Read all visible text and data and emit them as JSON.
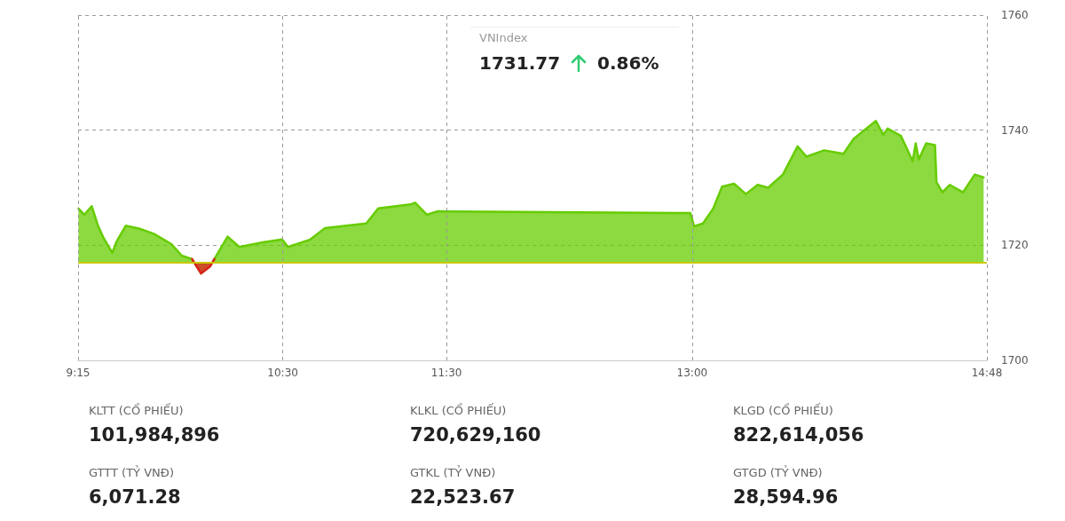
{
  "chart_data": {
    "type": "area",
    "title": "VNIndex",
    "series": [
      {
        "color": "#66cc00",
        "x": [
          9.252,
          9.288,
          9.333,
          9.369,
          9.405,
          9.459,
          9.486,
          9.541,
          9.622,
          9.712,
          9.82,
          9.883,
          9.946,
          10.001,
          10.055,
          10.082,
          10.163,
          10.235,
          10.379,
          10.496,
          10.532,
          10.668,
          10.758,
          11.01,
          11.083,
          11.281,
          11.308,
          11.38,
          11.443,
          12.989,
          13.012,
          13.066,
          13.129,
          13.183,
          13.256,
          13.328,
          13.4,
          13.464,
          13.554,
          13.644,
          13.698,
          13.806,
          13.924,
          13.986,
          14.122,
          14.167,
          14.194,
          14.275,
          14.347,
          14.365,
          14.384,
          14.429,
          14.483,
          14.492,
          14.528,
          14.573,
          14.654,
          14.726,
          14.78
        ],
        "values": [
          1726.4,
          1725.3,
          1726.8,
          1723.6,
          1721.3,
          1718.7,
          1720.7,
          1723.4,
          1722.9,
          1722.0,
          1720.2,
          1718.2,
          1717.6,
          1715.1,
          1716.3,
          1717.6,
          1721.5,
          1719.7,
          1720.5,
          1721.0,
          1719.7,
          1721.0,
          1723.0,
          1723.8,
          1726.4,
          1727.1,
          1727.4,
          1725.3,
          1725.9,
          1725.6,
          1723.3,
          1723.8,
          1726.4,
          1730.2,
          1730.7,
          1728.9,
          1730.5,
          1730.0,
          1732.3,
          1737.2,
          1735.4,
          1736.5,
          1735.9,
          1738.5,
          1741.6,
          1739.2,
          1740.3,
          1739.0,
          1734.6,
          1737.7,
          1734.9,
          1737.7,
          1737.4,
          1731.0,
          1729.2,
          1730.5,
          1729.2,
          1732.3,
          1731.8
        ]
      },
      {
        "color": "#e02020",
        "x": [
          9.946,
          10.001,
          10.055,
          10.082
        ],
        "values": [
          1717.6,
          1715.1,
          1716.3,
          1717.6
        ]
      }
    ],
    "xlim": [
      9.25,
      14.8
    ],
    "xticks": [
      {
        "value": 9.25,
        "label": "9:15"
      },
      {
        "value": 10.5,
        "label": "10:30"
      },
      {
        "value": 11.5,
        "label": "11:30"
      },
      {
        "value": 13,
        "label": "13:00"
      },
      {
        "value": 14.8,
        "label": "14:48"
      }
    ],
    "ylim": [
      1700,
      1760
    ],
    "yticks": [
      1700,
      1720,
      1740,
      1760
    ],
    "grid": true,
    "marker": "none",
    "line_style": "solid",
    "ref_lines": [
      {
        "axis": "y",
        "value": 1717,
        "color": "#c8c800"
      }
    ],
    "annotations": [
      "1731.77",
      "0.86%",
      "KLTT (CỔ PHIẾU)",
      "101,984,896",
      "KLKL (CỔ PHIẾU)",
      "720,629,160",
      "KLGD (CỔ PHIẾU)",
      "822,614,056",
      "GTTT (TỶ VNĐ)",
      "6,071.28",
      "GTKL (TỶ VNĐ)",
      "22,523.67",
      "GTGD (TỶ VNĐ)",
      "28,594.96"
    ]
  }
}
